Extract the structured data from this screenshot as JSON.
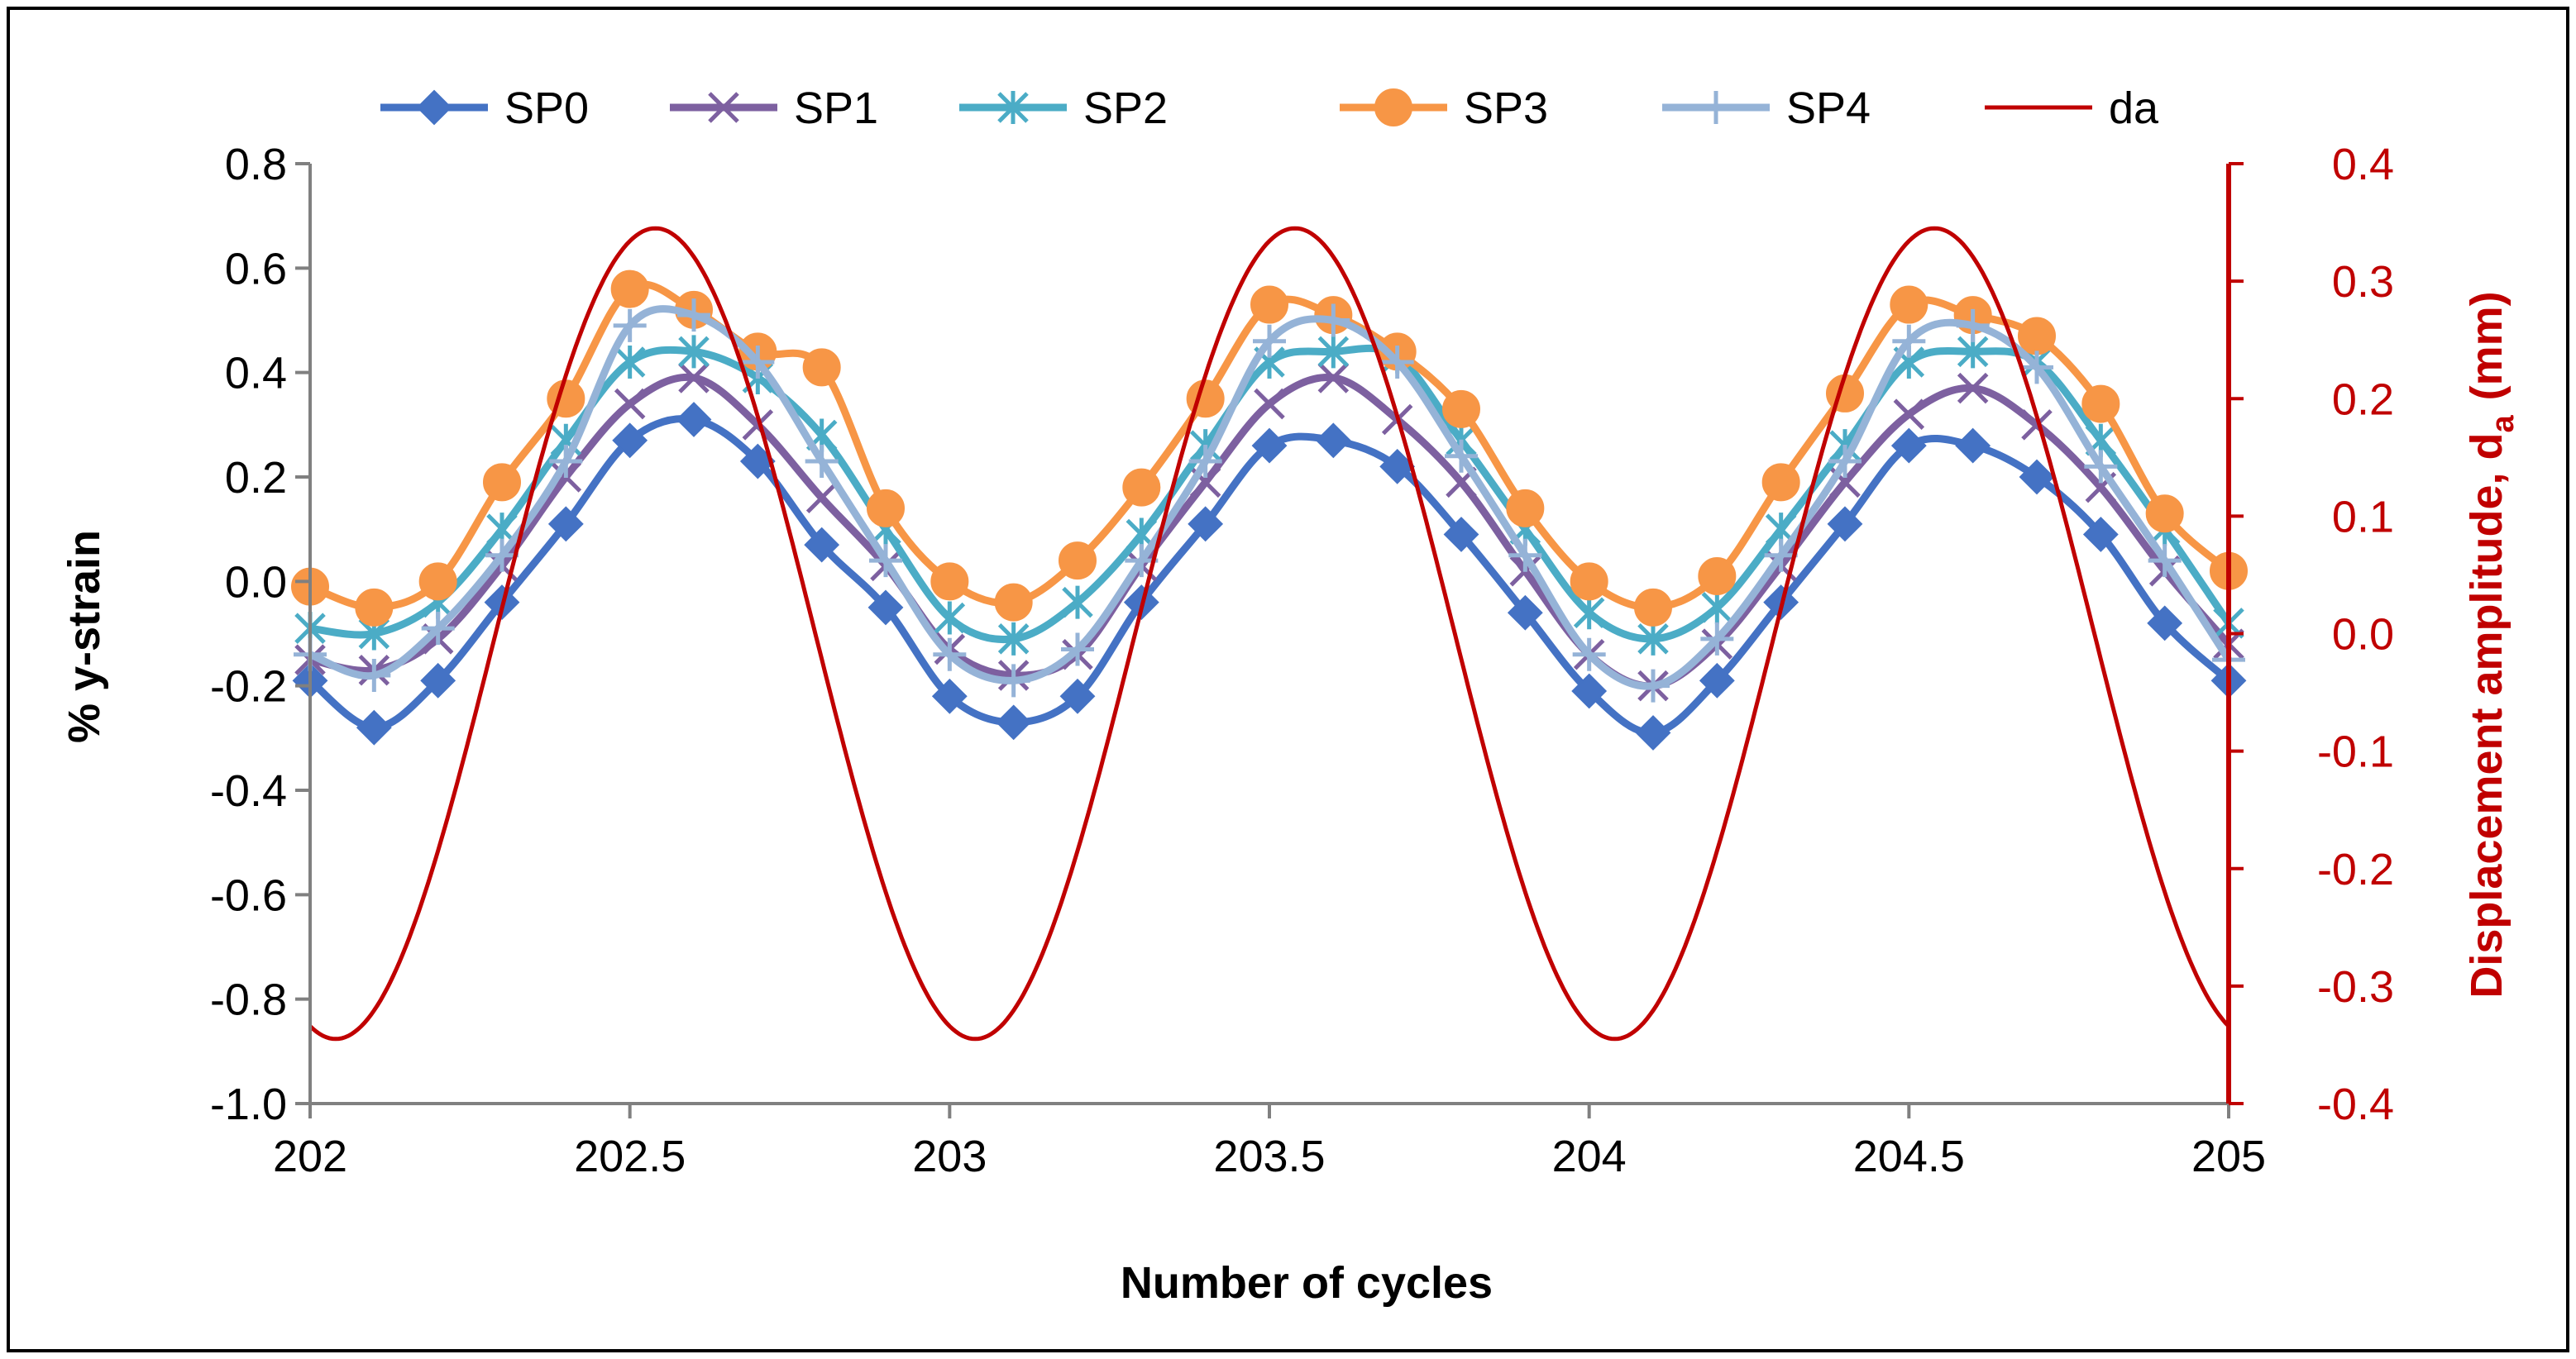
{
  "chart_data": {
    "type": "line",
    "xlabel": "Number of cycles",
    "ylabel": "% y-strain",
    "y2label_main": "Displacement amplitude, d",
    "y2label_sub": "a",
    "y2label_unit": "(mm)",
    "xlim": [
      202,
      205
    ],
    "ylim": [
      -1.0,
      0.8
    ],
    "y2lim": [
      -0.4,
      0.4
    ],
    "xticks": [
      "202",
      "202.5",
      "203",
      "203.5",
      "204",
      "204.5",
      "205"
    ],
    "xtick_values": [
      202,
      202.5,
      203,
      203.5,
      204,
      204.5,
      205
    ],
    "yticks": [
      "0.8",
      "0.6",
      "0.4",
      "0.2",
      "0.0",
      "-0.2",
      "-0.4",
      "-0.6",
      "-0.8",
      "-1.0"
    ],
    "ytick_values": [
      0.8,
      0.6,
      0.4,
      0.2,
      0.0,
      -0.2,
      -0.4,
      -0.6,
      -0.8,
      -1.0
    ],
    "y2ticks": [
      "0.4",
      "0.3",
      "0.2",
      "0.1",
      "0.0",
      "-0.1",
      "-0.2",
      "-0.3",
      "-0.4"
    ],
    "y2tick_values": [
      0.4,
      0.3,
      0.2,
      0.1,
      0.0,
      -0.1,
      -0.2,
      -0.3,
      -0.4
    ],
    "grid": false,
    "legend_position": "top",
    "x": [
      202.0,
      202.1,
      202.2,
      202.3,
      202.4,
      202.5,
      202.6,
      202.7,
      202.8,
      202.9,
      203.0,
      203.1,
      203.2,
      203.3,
      203.4,
      203.5,
      203.6,
      203.7,
      203.8,
      203.9,
      204.0,
      204.1,
      204.2,
      204.3,
      204.4,
      204.5,
      204.6,
      204.7,
      204.8,
      204.9,
      205.0
    ],
    "series": [
      {
        "name": "SP0",
        "color": "#4472C4",
        "marker": "diamond",
        "values": [
          -0.19,
          -0.28,
          -0.19,
          -0.04,
          0.11,
          0.27,
          0.31,
          0.23,
          0.07,
          -0.05,
          -0.22,
          -0.27,
          -0.22,
          -0.04,
          0.11,
          0.26,
          0.27,
          0.22,
          0.09,
          -0.06,
          -0.21,
          -0.29,
          -0.19,
          -0.04,
          0.11,
          0.26,
          0.26,
          0.2,
          0.09,
          -0.08,
          -0.19
        ]
      },
      {
        "name": "SP1",
        "color": "#7D60A0",
        "marker": "x",
        "values": [
          -0.15,
          -0.17,
          -0.11,
          0.03,
          0.2,
          0.34,
          0.39,
          0.3,
          0.16,
          0.03,
          -0.13,
          -0.18,
          -0.14,
          0.03,
          0.19,
          0.34,
          0.39,
          0.31,
          0.19,
          0.02,
          -0.14,
          -0.2,
          -0.12,
          0.03,
          0.19,
          0.32,
          0.37,
          0.3,
          0.18,
          0.02,
          -0.12
        ]
      },
      {
        "name": "SP2",
        "color": "#4BACC6",
        "marker": "asterisk",
        "values": [
          -0.09,
          -0.1,
          -0.04,
          0.1,
          0.27,
          0.42,
          0.44,
          0.39,
          0.28,
          0.1,
          -0.07,
          -0.11,
          -0.04,
          0.09,
          0.26,
          0.42,
          0.44,
          0.43,
          0.27,
          0.1,
          -0.06,
          -0.11,
          -0.05,
          0.1,
          0.26,
          0.42,
          0.44,
          0.42,
          0.27,
          0.1,
          -0.08
        ]
      },
      {
        "name": "SP3",
        "color": "#F79646",
        "marker": "circle",
        "values": [
          -0.01,
          -0.05,
          0.0,
          0.19,
          0.35,
          0.56,
          0.52,
          0.44,
          0.41,
          0.14,
          0.0,
          -0.04,
          0.04,
          0.18,
          0.35,
          0.53,
          0.51,
          0.44,
          0.33,
          0.14,
          0.0,
          -0.05,
          0.01,
          0.19,
          0.36,
          0.53,
          0.51,
          0.47,
          0.34,
          0.13,
          0.02
        ]
      },
      {
        "name": "SP4",
        "color": "#95B3D7",
        "marker": "plus",
        "values": [
          -0.14,
          -0.18,
          -0.09,
          0.05,
          0.23,
          0.49,
          0.51,
          0.42,
          0.23,
          0.04,
          -0.14,
          -0.19,
          -0.13,
          0.04,
          0.23,
          0.46,
          0.5,
          0.42,
          0.24,
          0.05,
          -0.14,
          -0.2,
          -0.11,
          0.05,
          0.23,
          0.46,
          0.49,
          0.41,
          0.22,
          0.04,
          -0.15
        ]
      }
    ],
    "secondary_series": {
      "name": "da",
      "color": "#C00000",
      "axis": "right",
      "amplitude": 0.345,
      "frequency_per_cycle": 1.0,
      "peak_at_x": 202.54,
      "note": "sinusoid da = amplitude * cos(2*pi*(x - peak_at_x))"
    }
  }
}
